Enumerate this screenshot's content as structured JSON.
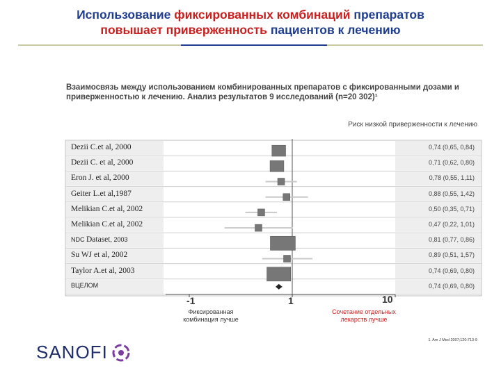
{
  "header": {
    "title_part1": "Использование ",
    "title_part2": "фиксированных комбинаций",
    "title_part3": " препаратов",
    "title_part4": "повышает приверженность",
    "title_part5": " пациентов к лечению",
    "accent_blue": "#1f3d8f",
    "accent_red": "#c8201e"
  },
  "chart_data": {
    "type": "forest",
    "subtitle": "Взаимосвязь между использованием комбинированных препаратов с фиксированными дозами и приверженностью к лечению. Анализ результатов 9 исследований (n=20 302)¹",
    "measure_label": "Риск низкой приверженности к лечению",
    "scale": "log",
    "tick_labels": [
      "-1",
      "1",
      "10"
    ],
    "studies": [
      {
        "label": "Dezii C.et al, 2000",
        "value": 0.74,
        "ci_low": 0.65,
        "ci_high": 0.84,
        "ci_text": "0,74 (0,65, 0,84)"
      },
      {
        "label": "Dezii C. et al, 2000",
        "value": 0.71,
        "ci_low": 0.62,
        "ci_high": 0.8,
        "ci_text": "0,71 (0,62, 0,80)"
      },
      {
        "label": "Eron J. et al, 2000",
        "value": 0.78,
        "ci_low": 0.55,
        "ci_high": 1.11,
        "ci_text": "0,78 (0,55, 1,11)"
      },
      {
        "label": "Geiter L.et al,1987",
        "value": 0.88,
        "ci_low": 0.55,
        "ci_high": 1.42,
        "ci_text": "0,88 (0,55, 1,42)"
      },
      {
        "label": "Melikian C.et al, 2002",
        "value": 0.5,
        "ci_low": 0.35,
        "ci_high": 0.71,
        "ci_text": "0,50 (0,35, 0,71)"
      },
      {
        "label": "Melikian C.et al, 2002",
        "value": 0.47,
        "ci_low": 0.22,
        "ci_high": 1.01,
        "ci_text": "0,47 (0,22, 1,01)"
      },
      {
        "label_main": "NDC ",
        "label_bold": "Dataset",
        "label_rest": ", 2003",
        "value": 0.81,
        "ci_low": 0.77,
        "ci_high": 0.86,
        "ci_text": "0,81 (0,77, 0,86)"
      },
      {
        "label": "Su WJ et al, 2002",
        "value": 0.89,
        "ci_low": 0.51,
        "ci_high": 1.57,
        "ci_text": "0,89 (0,51, 1,57)"
      },
      {
        "label": "Taylor A.et al, 2003",
        "value": 0.74,
        "ci_low": 0.69,
        "ci_high": 0.8,
        "ci_text": "0,74 (0,69, 0,80)"
      }
    ],
    "overall": {
      "label": "ВЦЕЛОМ",
      "value": 0.74,
      "ci_low": 0.69,
      "ci_high": 0.8,
      "ci_text": "0,74 (0,69, 0,80)"
    },
    "favours_left": "Фиксированная комбинация лучше",
    "favours_right": "Сочетание отдельных лекарств лучше"
  },
  "footnote": "1. Am J Med 2007;120:713-9",
  "logo": {
    "text": "SANOFI",
    "color": "#1f2e6b"
  }
}
